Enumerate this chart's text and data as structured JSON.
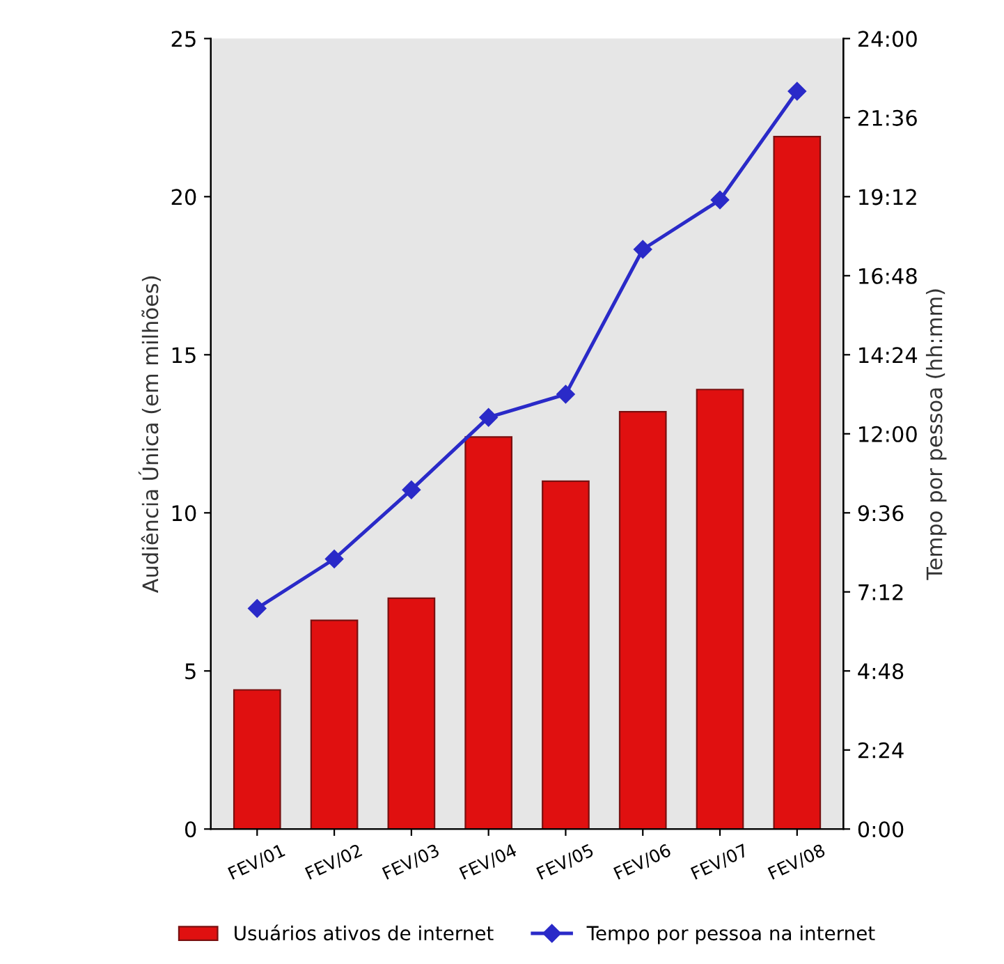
{
  "chart_data": {
    "type": "bar",
    "categories": [
      "FEV/01",
      "FEV/02",
      "FEV/03",
      "FEV/04",
      "FEV/05",
      "FEV/06",
      "FEV/07",
      "FEV/08"
    ],
    "ylabel": "Audiência Única (em milhões)",
    "y2label": "Tempo por pessoa (hh:mm)",
    "ylim": [
      0,
      25
    ],
    "yticks": [
      0,
      5,
      10,
      15,
      20,
      25
    ],
    "y2lim": [
      0,
      24
    ],
    "y2ticks": [
      {
        "value": 0,
        "label": "0:00"
      },
      {
        "value": 2.4,
        "label": "2:24"
      },
      {
        "value": 4.8,
        "label": "4:48"
      },
      {
        "value": 7.2,
        "label": "7:12"
      },
      {
        "value": 9.6,
        "label": "9:36"
      },
      {
        "value": 12,
        "label": "12:00"
      },
      {
        "value": 14.4,
        "label": "14:24"
      },
      {
        "value": 16.8,
        "label": "16:48"
      },
      {
        "value": 19.2,
        "label": "19:12"
      },
      {
        "value": 21.6,
        "label": "21:36"
      },
      {
        "value": 24,
        "label": "24:00"
      }
    ],
    "series": [
      {
        "name": "Usuários ativos de internet",
        "color": "#e01010",
        "values": [
          4.4,
          6.6,
          7.3,
          12.4,
          11.0,
          13.2,
          13.9,
          21.9
        ]
      },
      {
        "name": "Tempo por pessoa na internet",
        "type": "line",
        "axis": "y2",
        "color": "#2a2ac8",
        "marker": "diamond",
        "values": [
          6.7,
          8.2,
          10.3,
          12.5,
          13.2,
          17.6,
          19.1,
          22.4
        ]
      }
    ],
    "legend": "bottom",
    "grid": false
  }
}
